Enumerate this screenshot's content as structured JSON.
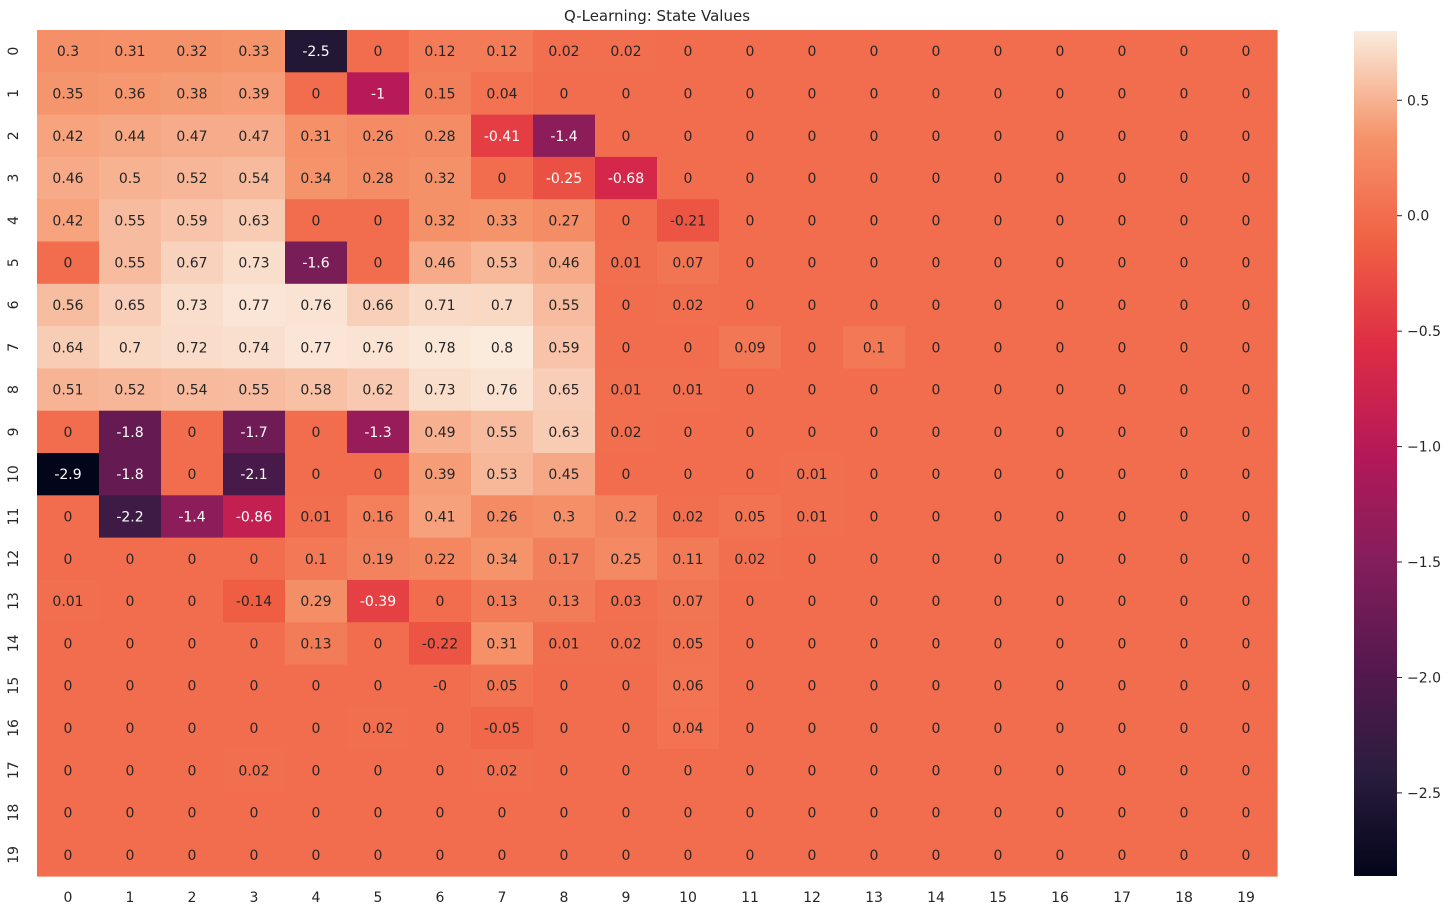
{
  "chart_data": {
    "type": "heatmap",
    "title": "Q-Learning: State Values",
    "xlabel": "",
    "ylabel": "",
    "x_ticks": [
      "0",
      "1",
      "2",
      "3",
      "4",
      "5",
      "6",
      "7",
      "8",
      "9",
      "10",
      "11",
      "12",
      "13",
      "14",
      "15",
      "16",
      "17",
      "18",
      "19"
    ],
    "y_ticks": [
      "0",
      "1",
      "2",
      "3",
      "4",
      "5",
      "6",
      "7",
      "8",
      "9",
      "10",
      "11",
      "12",
      "13",
      "14",
      "15",
      "16",
      "17",
      "18",
      "19"
    ],
    "colorbar": {
      "vmin": -2.86,
      "vmax": 0.8,
      "ticks": [
        0.5,
        0.0,
        -0.5,
        -1.0,
        -1.5,
        -2.0,
        -2.5
      ],
      "tick_labels": [
        "0.5",
        "0.0",
        "−0.5",
        "−1.0",
        "−1.5",
        "−2.0",
        "−2.5"
      ],
      "colormap": "rocket"
    },
    "values": [
      [
        0.3,
        0.31,
        0.32,
        0.33,
        -2.5,
        0,
        0.12,
        0.12,
        0.02,
        0.02,
        0,
        0,
        0,
        0,
        0,
        0,
        0,
        0,
        0,
        0
      ],
      [
        0.35,
        0.36,
        0.38,
        0.39,
        0,
        -1,
        0.15,
        0.04,
        0,
        0,
        0,
        0,
        0,
        0,
        0,
        0,
        0,
        0,
        0,
        0
      ],
      [
        0.42,
        0.44,
        0.47,
        0.47,
        0.31,
        0.26,
        0.28,
        -0.41,
        -1.4,
        0,
        0,
        0,
        0,
        0,
        0,
        0,
        0,
        0,
        0,
        0
      ],
      [
        0.46,
        0.5,
        0.52,
        0.54,
        0.34,
        0.28,
        0.32,
        0,
        -0.25,
        -0.68,
        0,
        0,
        0,
        0,
        0,
        0,
        0,
        0,
        0,
        0
      ],
      [
        0.42,
        0.55,
        0.59,
        0.63,
        0,
        0,
        0.32,
        0.33,
        0.27,
        0,
        -0.21,
        0,
        0,
        0,
        0,
        0,
        0,
        0,
        0,
        0
      ],
      [
        0,
        0.55,
        0.67,
        0.73,
        -1.6,
        0,
        0.46,
        0.53,
        0.46,
        0.01,
        0.07,
        0,
        0,
        0,
        0,
        0,
        0,
        0,
        0,
        0
      ],
      [
        0.56,
        0.65,
        0.73,
        0.77,
        0.76,
        0.66,
        0.71,
        0.7,
        0.55,
        0,
        0.02,
        0,
        0,
        0,
        0,
        0,
        0,
        0,
        0,
        0
      ],
      [
        0.64,
        0.7,
        0.72,
        0.74,
        0.77,
        0.76,
        0.78,
        0.8,
        0.59,
        0,
        0,
        0.09,
        0,
        0.1,
        0,
        0,
        0,
        0,
        0,
        0
      ],
      [
        0.51,
        0.52,
        0.54,
        0.55,
        0.58,
        0.62,
        0.73,
        0.76,
        0.65,
        0.01,
        0.01,
        0,
        0,
        0,
        0,
        0,
        0,
        0,
        0,
        0
      ],
      [
        0,
        -1.8,
        0,
        -1.7,
        0,
        -1.3,
        0.49,
        0.55,
        0.63,
        0.02,
        0,
        0,
        0,
        0,
        0,
        0,
        0,
        0,
        0,
        0
      ],
      [
        -2.9,
        -1.8,
        0,
        -2.1,
        0,
        0,
        0.39,
        0.53,
        0.45,
        0,
        0,
        0,
        0.01,
        0,
        0,
        0,
        0,
        0,
        0,
        0
      ],
      [
        0,
        -2.2,
        -1.4,
        -0.86,
        0.01,
        0.16,
        0.41,
        0.26,
        0.3,
        0.2,
        0.02,
        0.05,
        0.01,
        0,
        0,
        0,
        0,
        0,
        0,
        0
      ],
      [
        0,
        0,
        0,
        0,
        0.1,
        0.19,
        0.22,
        0.34,
        0.17,
        0.25,
        0.11,
        0.02,
        0,
        0,
        0,
        0,
        0,
        0,
        0,
        0
      ],
      [
        0.01,
        0,
        0,
        -0.14,
        0.29,
        -0.39,
        0,
        0.13,
        0.13,
        0.03,
        0.07,
        0,
        0,
        0,
        0,
        0,
        0,
        0,
        0,
        0
      ],
      [
        0,
        0,
        0,
        0,
        0.13,
        0,
        -0.22,
        0.31,
        0.01,
        0.02,
        0.05,
        0,
        0,
        0,
        0,
        0,
        0,
        0,
        0,
        0
      ],
      [
        0,
        0,
        0,
        0,
        0,
        0,
        -0.0,
        0.05,
        0,
        0,
        0.06,
        0,
        0,
        0,
        0,
        0,
        0,
        0,
        0,
        0
      ],
      [
        0,
        0,
        0,
        0,
        0,
        0.02,
        0,
        -0.05,
        0,
        0,
        0.04,
        0,
        0,
        0,
        0,
        0,
        0,
        0,
        0,
        0
      ],
      [
        0,
        0,
        0,
        0.02,
        0,
        0,
        0,
        0.02,
        0,
        0,
        0,
        0,
        0,
        0,
        0,
        0,
        0,
        0,
        0,
        0
      ],
      [
        0,
        0,
        0,
        0,
        0,
        0,
        0,
        0,
        0,
        0,
        0,
        0,
        0,
        0,
        0,
        0,
        0,
        0,
        0,
        0
      ],
      [
        0,
        0,
        0,
        0,
        0,
        0,
        0,
        0,
        0,
        0,
        0,
        0,
        0,
        0,
        0,
        0,
        0,
        0,
        0,
        0
      ]
    ],
    "labels": [
      [
        "0.3",
        "0.31",
        "0.32",
        "0.33",
        "-2.5",
        "0",
        "0.12",
        "0.12",
        "0.02",
        "0.02",
        "0",
        "0",
        "0",
        "0",
        "0",
        "0",
        "0",
        "0",
        "0",
        "0"
      ],
      [
        "0.35",
        "0.36",
        "0.38",
        "0.39",
        "0",
        "-1",
        "0.15",
        "0.04",
        "0",
        "0",
        "0",
        "0",
        "0",
        "0",
        "0",
        "0",
        "0",
        "0",
        "0",
        "0"
      ],
      [
        "0.42",
        "0.44",
        "0.47",
        "0.47",
        "0.31",
        "0.26",
        "0.28",
        "-0.41",
        "-1.4",
        "0",
        "0",
        "0",
        "0",
        "0",
        "0",
        "0",
        "0",
        "0",
        "0",
        "0"
      ],
      [
        "0.46",
        "0.5",
        "0.52",
        "0.54",
        "0.34",
        "0.28",
        "0.32",
        "0",
        "-0.25",
        "-0.68",
        "0",
        "0",
        "0",
        "0",
        "0",
        "0",
        "0",
        "0",
        "0",
        "0"
      ],
      [
        "0.42",
        "0.55",
        "0.59",
        "0.63",
        "0",
        "0",
        "0.32",
        "0.33",
        "0.27",
        "0",
        "-0.21",
        "0",
        "0",
        "0",
        "0",
        "0",
        "0",
        "0",
        "0",
        "0"
      ],
      [
        "0",
        "0.55",
        "0.67",
        "0.73",
        "-1.6",
        "0",
        "0.46",
        "0.53",
        "0.46",
        "0.01",
        "0.07",
        "0",
        "0",
        "0",
        "0",
        "0",
        "0",
        "0",
        "0",
        "0"
      ],
      [
        "0.56",
        "0.65",
        "0.73",
        "0.77",
        "0.76",
        "0.66",
        "0.71",
        "0.7",
        "0.55",
        "0",
        "0.02",
        "0",
        "0",
        "0",
        "0",
        "0",
        "0",
        "0",
        "0",
        "0"
      ],
      [
        "0.64",
        "0.7",
        "0.72",
        "0.74",
        "0.77",
        "0.76",
        "0.78",
        "0.8",
        "0.59",
        "0",
        "0",
        "0.09",
        "0",
        "0.1",
        "0",
        "0",
        "0",
        "0",
        "0",
        "0"
      ],
      [
        "0.51",
        "0.52",
        "0.54",
        "0.55",
        "0.58",
        "0.62",
        "0.73",
        "0.76",
        "0.65",
        "0.01",
        "0.01",
        "0",
        "0",
        "0",
        "0",
        "0",
        "0",
        "0",
        "0",
        "0"
      ],
      [
        "0",
        "-1.8",
        "0",
        "-1.7",
        "0",
        "-1.3",
        "0.49",
        "0.55",
        "0.63",
        "0.02",
        "0",
        "0",
        "0",
        "0",
        "0",
        "0",
        "0",
        "0",
        "0",
        "0"
      ],
      [
        "-2.9",
        "-1.8",
        "0",
        "-2.1",
        "0",
        "0",
        "0.39",
        "0.53",
        "0.45",
        "0",
        "0",
        "0",
        "0.01",
        "0",
        "0",
        "0",
        "0",
        "0",
        "0",
        "0"
      ],
      [
        "0",
        "-2.2",
        "-1.4",
        "-0.86",
        "0.01",
        "0.16",
        "0.41",
        "0.26",
        "0.3",
        "0.2",
        "0.02",
        "0.05",
        "0.01",
        "0",
        "0",
        "0",
        "0",
        "0",
        "0",
        "0"
      ],
      [
        "0",
        "0",
        "0",
        "0",
        "0.1",
        "0.19",
        "0.22",
        "0.34",
        "0.17",
        "0.25",
        "0.11",
        "0.02",
        "0",
        "0",
        "0",
        "0",
        "0",
        "0",
        "0",
        "0"
      ],
      [
        "0.01",
        "0",
        "0",
        "-0.14",
        "0.29",
        "-0.39",
        "0",
        "0.13",
        "0.13",
        "0.03",
        "0.07",
        "0",
        "0",
        "0",
        "0",
        "0",
        "0",
        "0",
        "0",
        "0"
      ],
      [
        "0",
        "0",
        "0",
        "0",
        "0.13",
        "0",
        "-0.22",
        "0.31",
        "0.01",
        "0.02",
        "0.05",
        "0",
        "0",
        "0",
        "0",
        "0",
        "0",
        "0",
        "0",
        "0"
      ],
      [
        "0",
        "0",
        "0",
        "0",
        "0",
        "0",
        "-0",
        "0.05",
        "0",
        "0",
        "0.06",
        "0",
        "0",
        "0",
        "0",
        "0",
        "0",
        "0",
        "0",
        "0"
      ],
      [
        "0",
        "0",
        "0",
        "0",
        "0",
        "0.02",
        "0",
        "-0.05",
        "0",
        "0",
        "0.04",
        "0",
        "0",
        "0",
        "0",
        "0",
        "0",
        "0",
        "0",
        "0"
      ],
      [
        "0",
        "0",
        "0",
        "0.02",
        "0",
        "0",
        "0",
        "0.02",
        "0",
        "0",
        "0",
        "0",
        "0",
        "0",
        "0",
        "0",
        "0",
        "0",
        "0",
        "0"
      ],
      [
        "0",
        "0",
        "0",
        "0",
        "0",
        "0",
        "0",
        "0",
        "0",
        "0",
        "0",
        "0",
        "0",
        "0",
        "0",
        "0",
        "0",
        "0",
        "0",
        "0"
      ],
      [
        "0",
        "0",
        "0",
        "0",
        "0",
        "0",
        "0",
        "0",
        "0",
        "0",
        "0",
        "0",
        "0",
        "0",
        "0",
        "0",
        "0",
        "0",
        "0",
        "0"
      ]
    ]
  }
}
